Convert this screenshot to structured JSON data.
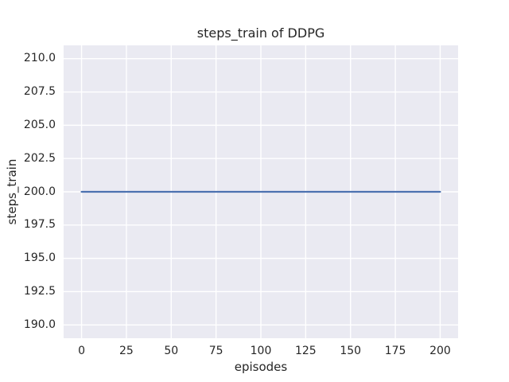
{
  "chart_data": {
    "type": "line",
    "title": "steps_train of DDPG",
    "xlabel": "episodes",
    "ylabel": "steps_train",
    "xlim": [
      -10,
      210
    ],
    "ylim": [
      189,
      211
    ],
    "grid": true,
    "legend": false,
    "xticks": {
      "values": [
        0,
        25,
        50,
        75,
        100,
        125,
        150,
        175,
        200
      ],
      "labels": [
        "0",
        "25",
        "50",
        "75",
        "100",
        "125",
        "150",
        "175",
        "200"
      ]
    },
    "yticks": {
      "values": [
        190,
        192.5,
        195,
        197.5,
        200,
        202.5,
        205,
        207.5,
        210
      ],
      "labels": [
        "190.0",
        "192.5",
        "195.0",
        "197.5",
        "200.0",
        "202.5",
        "205.0",
        "207.5",
        "210.0"
      ]
    },
    "style": {
      "plot_background": "#eaeaf2",
      "grid_color": "#ffffff",
      "text_color": "#262626",
      "line_width": 2.2,
      "grid_width": 1.4
    },
    "series": [
      {
        "name": "steps_train",
        "color": "#4c72b0",
        "x": [
          0,
          200
        ],
        "y": [
          200,
          200
        ]
      }
    ]
  }
}
